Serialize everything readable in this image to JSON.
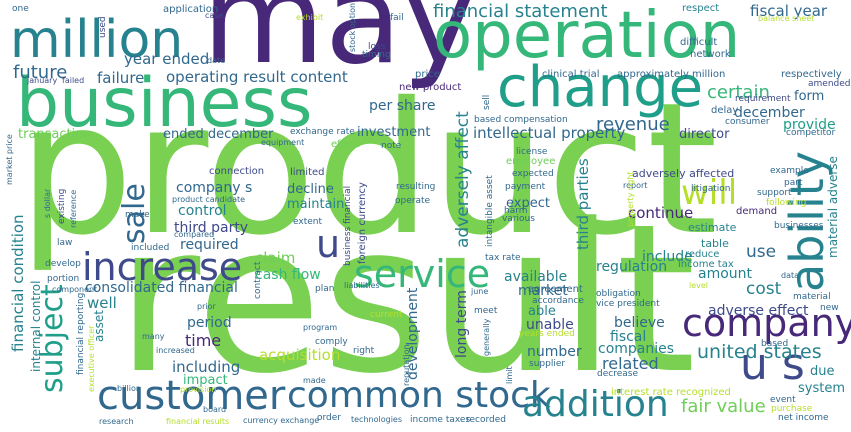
{
  "palette": {
    "purple_dark": "#482878",
    "indigo": "#3e4a89",
    "blue": "#31688e",
    "teal": "#26828e",
    "green_teal": "#1f9e89",
    "green": "#35b779",
    "lime": "#6ece58",
    "bright_green": "#7ad151",
    "yellow_green": "#b5de2b",
    "yellow": "#fde725"
  },
  "words": [
    {
      "text": "product",
      "color": "#7ad151"
    },
    {
      "text": "result",
      "color": "#7ad151"
    },
    {
      "text": "may",
      "color": "#482878"
    },
    {
      "text": "operation",
      "color": "#35b779"
    },
    {
      "text": "business",
      "color": "#35b779"
    },
    {
      "text": "change",
      "color": "#1f9e89"
    },
    {
      "text": "million",
      "color": "#26828e"
    },
    {
      "text": "customer",
      "color": "#31688e"
    },
    {
      "text": "common stock",
      "color": "#31688e"
    },
    {
      "text": "addition",
      "color": "#26828e"
    },
    {
      "text": "company",
      "color": "#482878"
    },
    {
      "text": "increase",
      "color": "#3e4a89"
    },
    {
      "text": "service",
      "color": "#35b779"
    },
    {
      "text": "ability",
      "color": "#26828e"
    },
    {
      "text": "u s",
      "color": "#3e4a89"
    },
    {
      "text": "u",
      "color": "#3e4a89"
    },
    {
      "text": "will",
      "color": "#b5de2b"
    },
    {
      "text": "sale",
      "color": "#31688e"
    },
    {
      "text": "subject",
      "color": "#1f9e89"
    },
    {
      "text": "fair value",
      "color": "#6ece58"
    },
    {
      "text": "financial statement",
      "color": "#26828e"
    },
    {
      "text": "fiscal year",
      "color": "#31688e"
    },
    {
      "text": "future",
      "color": "#31688e"
    },
    {
      "text": "year ended",
      "color": "#31688e"
    },
    {
      "text": "failure",
      "color": "#31688e"
    },
    {
      "text": "operating result content",
      "color": "#31688e"
    },
    {
      "text": "certain",
      "color": "#35b779"
    },
    {
      "text": "form",
      "color": "#31688e"
    },
    {
      "text": "december",
      "color": "#31688e"
    },
    {
      "text": "provide",
      "color": "#1f9e89"
    },
    {
      "text": "revenue",
      "color": "#31688e"
    },
    {
      "text": "per share",
      "color": "#31688e"
    },
    {
      "text": "intellectual property",
      "color": "#31688e"
    },
    {
      "text": "director",
      "color": "#3e4a89"
    },
    {
      "text": "transaction",
      "color": "#6ece58"
    },
    {
      "text": "ended december",
      "color": "#31688e"
    },
    {
      "text": "investment",
      "color": "#31688e"
    },
    {
      "text": "adversely affect",
      "color": "#26828e"
    },
    {
      "text": "united states",
      "color": "#26828e"
    },
    {
      "text": "third parties",
      "color": "#26828e"
    },
    {
      "text": "company s",
      "color": "#31688e"
    },
    {
      "text": "control",
      "color": "#26828e"
    },
    {
      "text": "third party",
      "color": "#3e4a89"
    },
    {
      "text": "required",
      "color": "#31688e"
    },
    {
      "text": "continue",
      "color": "#482878"
    },
    {
      "text": "use",
      "color": "#31688e"
    },
    {
      "text": "cost",
      "color": "#26828e"
    },
    {
      "text": "amount",
      "color": "#26828e"
    },
    {
      "text": "claim",
      "color": "#6ece58"
    },
    {
      "text": "cash flow",
      "color": "#35b779"
    },
    {
      "text": "consolidated financial",
      "color": "#31688e"
    },
    {
      "text": "financial condition",
      "color": "#26828e"
    },
    {
      "text": "well",
      "color": "#26828e"
    },
    {
      "text": "period",
      "color": "#31688e"
    },
    {
      "text": "time",
      "color": "#482878"
    },
    {
      "text": "acquisition",
      "color": "#b5de2b"
    },
    {
      "text": "including",
      "color": "#31688e"
    },
    {
      "text": "impact",
      "color": "#35b779"
    },
    {
      "text": "available",
      "color": "#26828e"
    },
    {
      "text": "market",
      "color": "#31688e"
    },
    {
      "text": "regulation",
      "color": "#26828e"
    },
    {
      "text": "include",
      "color": "#26828e"
    },
    {
      "text": "adverse effect",
      "color": "#3e4a89"
    },
    {
      "text": "believe",
      "color": "#31688e"
    },
    {
      "text": "fiscal",
      "color": "#26828e"
    },
    {
      "text": "companies",
      "color": "#26828e"
    },
    {
      "text": "related",
      "color": "#31688e"
    },
    {
      "text": "number",
      "color": "#31688e"
    },
    {
      "text": "development",
      "color": "#31688e"
    },
    {
      "text": "long term",
      "color": "#3e4a89"
    },
    {
      "text": "unable",
      "color": "#3e4a89"
    },
    {
      "text": "able",
      "color": "#26828e"
    },
    {
      "text": "due",
      "color": "#26828e"
    },
    {
      "text": "system",
      "color": "#26828e"
    },
    {
      "text": "internal control",
      "color": "#26828e"
    },
    {
      "text": "asset",
      "color": "#26828e"
    },
    {
      "text": "expect",
      "color": "#31688e"
    },
    {
      "text": "connection",
      "color": "#3e4a89"
    },
    {
      "text": "limited",
      "color": "#3e4a89"
    },
    {
      "text": "decline",
      "color": "#31688e"
    },
    {
      "text": "maintain",
      "color": "#26828e"
    },
    {
      "text": "adversely affected",
      "color": "#3e4a89"
    },
    {
      "text": "material adverse",
      "color": "#26828e"
    },
    {
      "text": "demand",
      "color": "#482878"
    },
    {
      "text": "estimate",
      "color": "#26828e"
    },
    {
      "text": "table",
      "color": "#26828e"
    },
    {
      "text": "income tax",
      "color": "#26828e"
    },
    {
      "text": "reduce",
      "color": "#26828e"
    },
    {
      "text": "application",
      "color": "#31688e"
    },
    {
      "text": "respect",
      "color": "#26828e"
    },
    {
      "text": "difficult",
      "color": "#31688e"
    },
    {
      "text": "network",
      "color": "#31688e"
    },
    {
      "text": "clinical trial",
      "color": "#31688e"
    },
    {
      "text": "approximately million",
      "color": "#31688e"
    },
    {
      "text": "respectively",
      "color": "#31688e"
    },
    {
      "text": "amended",
      "color": "#3e4a89"
    },
    {
      "text": "requirement",
      "color": "#3e4a89"
    },
    {
      "text": "delay",
      "color": "#31688e"
    },
    {
      "text": "consumer",
      "color": "#31688e"
    },
    {
      "text": "competitor",
      "color": "#31688e"
    },
    {
      "text": "exchange rate",
      "color": "#31688e"
    },
    {
      "text": "new product",
      "color": "#482878"
    },
    {
      "text": "price",
      "color": "#31688e"
    },
    {
      "text": "loss",
      "color": "#3e4a89"
    },
    {
      "text": "timing",
      "color": "#31688e"
    },
    {
      "text": "stock option",
      "color": "#31688e"
    },
    {
      "text": "fail",
      "color": "#31688e"
    },
    {
      "text": "exhibit",
      "color": "#b5de2b"
    },
    {
      "text": "case",
      "color": "#3e4a89"
    },
    {
      "text": "date",
      "color": "#31688e"
    },
    {
      "text": "balance sheet",
      "color": "#b5de2b"
    },
    {
      "text": "one",
      "color": "#31688e"
    },
    {
      "text": "used",
      "color": "#3e4a89"
    },
    {
      "text": "january",
      "color": "#3e4a89"
    },
    {
      "text": "failed",
      "color": "#3e4a89"
    },
    {
      "text": "sell",
      "color": "#31688e"
    },
    {
      "text": "based compensation",
      "color": "#31688e"
    },
    {
      "text": "license",
      "color": "#31688e"
    },
    {
      "text": "employee",
      "color": "#6ece58"
    },
    {
      "text": "expected",
      "color": "#31688e"
    },
    {
      "text": "payment",
      "color": "#31688e"
    },
    {
      "text": "resulting",
      "color": "#31688e"
    },
    {
      "text": "intangible asset",
      "color": "#31688e"
    },
    {
      "text": "various",
      "color": "#31688e"
    },
    {
      "text": "harm",
      "color": "#31688e"
    },
    {
      "text": "foreign currency",
      "color": "#3e4a89"
    },
    {
      "text": "business financial",
      "color": "#3e4a89"
    },
    {
      "text": "operate",
      "color": "#31688e"
    },
    {
      "text": "note",
      "color": "#31688e"
    },
    {
      "text": "extent",
      "color": "#31688e"
    },
    {
      "text": "product candidate",
      "color": "#31688e"
    },
    {
      "text": "compared",
      "color": "#31688e"
    },
    {
      "text": "existing",
      "color": "#3e4a89"
    },
    {
      "text": "reference",
      "color": "#31688e"
    },
    {
      "text": "law",
      "color": "#31688e"
    },
    {
      "text": "make",
      "color": "#31688e"
    },
    {
      "text": "included",
      "color": "#31688e"
    },
    {
      "text": "develop",
      "color": "#31688e"
    },
    {
      "text": "portion",
      "color": "#31688e"
    },
    {
      "text": "component",
      "color": "#31688e"
    },
    {
      "text": "s dollar",
      "color": "#31688e"
    },
    {
      "text": "market price",
      "color": "#31688e"
    },
    {
      "text": "equipment",
      "color": "#31688e"
    },
    {
      "text": "effect",
      "color": "#6ece58"
    },
    {
      "text": "report",
      "color": "#31688e"
    },
    {
      "text": "property right",
      "color": "#b5de2b"
    },
    {
      "text": "litigation",
      "color": "#31688e"
    },
    {
      "text": "support",
      "color": "#31688e"
    },
    {
      "text": "following",
      "color": "#b5de2b"
    },
    {
      "text": "example",
      "color": "#31688e"
    },
    {
      "text": "part",
      "color": "#31688e"
    },
    {
      "text": "businesses",
      "color": "#31688e"
    },
    {
      "text": "data",
      "color": "#31688e"
    },
    {
      "text": "level",
      "color": "#b5de2b"
    },
    {
      "text": "material",
      "color": "#31688e"
    },
    {
      "text": "new",
      "color": "#31688e"
    },
    {
      "text": "based",
      "color": "#31688e"
    },
    {
      "text": "obligation",
      "color": "#31688e"
    },
    {
      "text": "vice president",
      "color": "#31688e"
    },
    {
      "text": "accordance",
      "color": "#31688e"
    },
    {
      "text": "agreement",
      "color": "#31688e"
    },
    {
      "text": "june",
      "color": "#31688e"
    },
    {
      "text": "tax rate",
      "color": "#31688e"
    },
    {
      "text": "meet",
      "color": "#31688e"
    },
    {
      "text": "years ended",
      "color": "#b5de2b"
    },
    {
      "text": "supplier",
      "color": "#31688e"
    },
    {
      "text": "generally",
      "color": "#31688e"
    },
    {
      "text": "reputation",
      "color": "#31688e"
    },
    {
      "text": "decrease",
      "color": "#31688e"
    },
    {
      "text": "limit",
      "color": "#31688e"
    },
    {
      "text": "interest rate recognized",
      "color": "#b5de2b"
    },
    {
      "text": "event",
      "color": "#31688e"
    },
    {
      "text": "purchase",
      "color": "#b5de2b"
    },
    {
      "text": "net income",
      "color": "#31688e"
    },
    {
      "text": "income taxes",
      "color": "#31688e"
    },
    {
      "text": "recorded",
      "color": "#31688e"
    },
    {
      "text": "technologies",
      "color": "#31688e"
    },
    {
      "text": "order",
      "color": "#31688e"
    },
    {
      "text": "currency exchange",
      "color": "#31688e"
    },
    {
      "text": "board",
      "color": "#31688e"
    },
    {
      "text": "financial results",
      "color": "#b5de2b"
    },
    {
      "text": "research",
      "color": "#31688e"
    },
    {
      "text": "billion",
      "color": "#31688e"
    },
    {
      "text": "provision",
      "color": "#b5de2b"
    },
    {
      "text": "increased",
      "color": "#31688e"
    },
    {
      "text": "executive officer",
      "color": "#b5de2b"
    },
    {
      "text": "financial reporting",
      "color": "#31688e"
    },
    {
      "text": "many",
      "color": "#31688e"
    },
    {
      "text": "made",
      "color": "#31688e"
    },
    {
      "text": "right",
      "color": "#31688e"
    },
    {
      "text": "comply",
      "color": "#31688e"
    },
    {
      "text": "program",
      "color": "#31688e"
    },
    {
      "text": "current",
      "color": "#b5de2b"
    },
    {
      "text": "prior",
      "color": "#31688e"
    },
    {
      "text": "plan",
      "color": "#31688e"
    },
    {
      "text": "liabilities",
      "color": "#31688e"
    },
    {
      "text": "contract",
      "color": "#31688e"
    }
  ]
}
